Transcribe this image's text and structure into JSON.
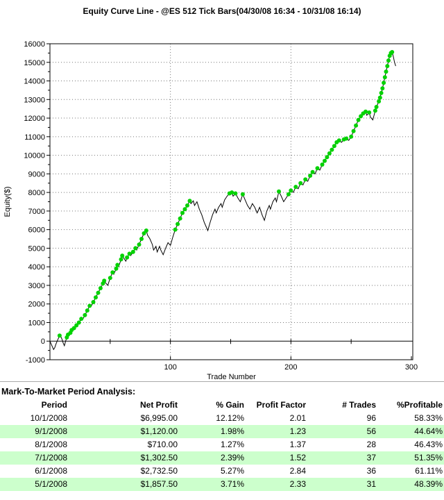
{
  "chart_data": {
    "type": "line",
    "title": "Equity Curve Line - @ES 512 Tick Bars(04/30/08 16:34 - 10/31/08 16:14)",
    "xlabel": "Trade Number",
    "ylabel": "Equity($)",
    "xlim": [
      0,
      300
    ],
    "ylim": [
      -1000,
      16000
    ],
    "x_ticks": [
      100,
      200,
      300
    ],
    "y_ticks": [
      -1000,
      0,
      1000,
      2000,
      3000,
      4000,
      5000,
      6000,
      7000,
      8000,
      9000,
      10000,
      11000,
      12000,
      13000,
      14000,
      15000,
      16000
    ],
    "grid": "dotted",
    "legend": "none",
    "line_color": "#000000",
    "marker_color": "#00d200",
    "series": [
      {
        "name": "Equity",
        "points": [
          [
            0,
            0
          ],
          [
            1,
            -150
          ],
          [
            2,
            -300
          ],
          [
            3,
            -450
          ],
          [
            4,
            -350
          ],
          [
            5,
            -150
          ],
          [
            6,
            0
          ],
          [
            7,
            150
          ],
          [
            8,
            300,
            1
          ],
          [
            9,
            250
          ],
          [
            10,
            100
          ],
          [
            11,
            -100
          ],
          [
            12,
            -250
          ],
          [
            13,
            0
          ],
          [
            14,
            200,
            1
          ],
          [
            15,
            350,
            1
          ],
          [
            16,
            300
          ],
          [
            17,
            450,
            1
          ],
          [
            18,
            600,
            1
          ],
          [
            19,
            550
          ],
          [
            20,
            700,
            1
          ],
          [
            22,
            850,
            1
          ],
          [
            24,
            1000,
            1
          ],
          [
            26,
            1200,
            1
          ],
          [
            27,
            1150
          ],
          [
            29,
            1400,
            1
          ],
          [
            31,
            1650,
            1
          ],
          [
            33,
            1900,
            1
          ],
          [
            34,
            1850
          ],
          [
            36,
            2100,
            1
          ],
          [
            38,
            2350,
            1
          ],
          [
            40,
            2600,
            1
          ],
          [
            42,
            2850,
            1
          ],
          [
            44,
            3100,
            1
          ],
          [
            45,
            3250,
            1
          ],
          [
            46,
            3150
          ],
          [
            48,
            3000
          ],
          [
            50,
            3400,
            1
          ],
          [
            52,
            3700,
            1
          ],
          [
            53,
            3600
          ],
          [
            55,
            3900,
            1
          ],
          [
            56,
            4100,
            1
          ],
          [
            57,
            4000
          ],
          [
            59,
            4400,
            1
          ],
          [
            60,
            4600,
            1
          ],
          [
            61,
            4500
          ],
          [
            63,
            4300
          ],
          [
            64,
            4500,
            1
          ],
          [
            66,
            4700,
            1
          ],
          [
            67,
            4600
          ],
          [
            69,
            4800,
            1
          ],
          [
            71,
            5000,
            1
          ],
          [
            72,
            4900
          ],
          [
            74,
            5200,
            1
          ],
          [
            76,
            5500,
            1
          ],
          [
            78,
            5800,
            1
          ],
          [
            80,
            5950,
            1
          ],
          [
            81,
            5700
          ],
          [
            83,
            5500
          ],
          [
            85,
            5200
          ],
          [
            86,
            4900
          ],
          [
            88,
            5100
          ],
          [
            89,
            4800
          ],
          [
            91,
            5100
          ],
          [
            92,
            4900
          ],
          [
            94,
            4650
          ],
          [
            96,
            5000
          ],
          [
            98,
            5300
          ],
          [
            100,
            5150
          ],
          [
            102,
            5600
          ],
          [
            104,
            6000,
            1
          ],
          [
            106,
            6300,
            1
          ],
          [
            108,
            6600,
            1
          ],
          [
            110,
            6900,
            1
          ],
          [
            112,
            7100,
            1
          ],
          [
            114,
            7300,
            1
          ],
          [
            116,
            7550,
            1
          ],
          [
            117,
            7400
          ],
          [
            119,
            7550
          ],
          [
            120,
            7300
          ],
          [
            122,
            7500
          ],
          [
            124,
            7100
          ],
          [
            126,
            6800
          ],
          [
            128,
            6400
          ],
          [
            130,
            6100
          ],
          [
            131,
            5950
          ],
          [
            133,
            6400
          ],
          [
            135,
            6800
          ],
          [
            137,
            7100
          ],
          [
            138,
            6900
          ],
          [
            140,
            7200
          ],
          [
            142,
            7400
          ],
          [
            143,
            7200
          ],
          [
            145,
            7600
          ],
          [
            147,
            7800
          ],
          [
            149,
            7950,
            1
          ],
          [
            151,
            8000,
            1
          ],
          [
            152,
            7800
          ],
          [
            154,
            7950,
            1
          ],
          [
            156,
            7700
          ],
          [
            158,
            7500
          ],
          [
            160,
            7900,
            1
          ],
          [
            162,
            7600
          ],
          [
            164,
            7300
          ],
          [
            166,
            7100
          ],
          [
            168,
            7400
          ],
          [
            170,
            7200
          ],
          [
            172,
            6900
          ],
          [
            174,
            7200
          ],
          [
            176,
            6800
          ],
          [
            178,
            6500
          ],
          [
            180,
            7000
          ],
          [
            182,
            7300
          ],
          [
            183,
            7100
          ],
          [
            185,
            7500
          ],
          [
            187,
            7700
          ],
          [
            188,
            7500
          ],
          [
            190,
            8050,
            1
          ],
          [
            192,
            7800
          ],
          [
            194,
            7500
          ],
          [
            196,
            7700
          ],
          [
            198,
            7900,
            1
          ],
          [
            200,
            8100,
            1
          ],
          [
            202,
            8000
          ],
          [
            204,
            8300,
            1
          ],
          [
            206,
            8200
          ],
          [
            208,
            8500,
            1
          ],
          [
            210,
            8400
          ],
          [
            212,
            8700,
            1
          ],
          [
            214,
            8600
          ],
          [
            216,
            8900,
            1
          ],
          [
            218,
            9100,
            1
          ],
          [
            220,
            9000
          ],
          [
            222,
            9300,
            1
          ],
          [
            224,
            9200
          ],
          [
            226,
            9500,
            1
          ],
          [
            228,
            9700,
            1
          ],
          [
            230,
            9900,
            1
          ],
          [
            232,
            10100,
            1
          ],
          [
            234,
            10300,
            1
          ],
          [
            236,
            10500,
            1
          ],
          [
            238,
            10700,
            1
          ],
          [
            240,
            10800,
            1
          ],
          [
            242,
            10700
          ],
          [
            244,
            10850,
            1
          ],
          [
            246,
            10900,
            1
          ],
          [
            248,
            10800
          ],
          [
            250,
            11000,
            1
          ],
          [
            252,
            11300,
            1
          ],
          [
            254,
            11600,
            1
          ],
          [
            256,
            11900,
            1
          ],
          [
            258,
            12100,
            1
          ],
          [
            260,
            12250,
            1
          ],
          [
            262,
            12350,
            1
          ],
          [
            263,
            12150
          ],
          [
            265,
            12300,
            1
          ],
          [
            266,
            12050
          ],
          [
            268,
            11900
          ],
          [
            270,
            12400,
            1
          ],
          [
            271,
            12600,
            1
          ],
          [
            273,
            12900,
            1
          ],
          [
            274,
            13100,
            1
          ],
          [
            275,
            13350,
            1
          ],
          [
            276,
            13600,
            1
          ],
          [
            277,
            13900,
            1
          ],
          [
            278,
            14200,
            1
          ],
          [
            279,
            14500,
            1
          ],
          [
            280,
            14800,
            1
          ],
          [
            281,
            15100,
            1
          ],
          [
            282,
            15350,
            1
          ],
          [
            283,
            15500,
            1
          ],
          [
            284,
            15550,
            1
          ],
          [
            285,
            15300
          ],
          [
            286,
            15000
          ],
          [
            287,
            14800
          ]
        ]
      }
    ]
  },
  "analysis": {
    "heading": "Mark-To-Market Period Analysis:",
    "columns": [
      "Period",
      "Net Profit",
      "% Gain",
      "Profit Factor",
      "# Trades",
      "%Profitable"
    ],
    "highlight_color": "#ccffcc",
    "rows": [
      [
        "10/1/2008",
        "$6,995.00",
        "12.12%",
        "2.01",
        "96",
        "58.33%"
      ],
      [
        "9/1/2008",
        "$1,120.00",
        "1.98%",
        "1.23",
        "56",
        "44.64%"
      ],
      [
        "8/1/2008",
        "$710.00",
        "1.27%",
        "1.37",
        "28",
        "46.43%"
      ],
      [
        "7/1/2008",
        "$1,302.50",
        "2.39%",
        "1.52",
        "37",
        "51.35%"
      ],
      [
        "6/1/2008",
        "$2,732.50",
        "5.27%",
        "2.84",
        "36",
        "61.11%"
      ],
      [
        "5/1/2008",
        "$1,857.50",
        "3.71%",
        "2.33",
        "31",
        "48.39%"
      ]
    ]
  }
}
